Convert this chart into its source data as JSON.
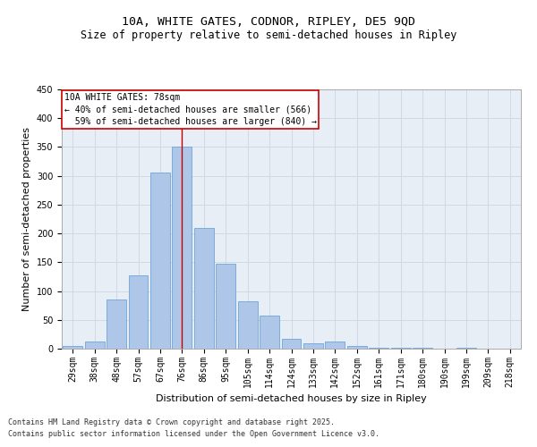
{
  "title_line1": "10A, WHITE GATES, CODNOR, RIPLEY, DE5 9QD",
  "title_line2": "Size of property relative to semi-detached houses in Ripley",
  "xlabel": "Distribution of semi-detached houses by size in Ripley",
  "ylabel": "Number of semi-detached properties",
  "categories": [
    "29sqm",
    "38sqm",
    "48sqm",
    "57sqm",
    "67sqm",
    "76sqm",
    "86sqm",
    "95sqm",
    "105sqm",
    "114sqm",
    "124sqm",
    "133sqm",
    "142sqm",
    "152sqm",
    "161sqm",
    "171sqm",
    "180sqm",
    "190sqm",
    "199sqm",
    "209sqm",
    "218sqm"
  ],
  "bar_values": [
    5,
    12,
    85,
    128,
    305,
    350,
    210,
    147,
    83,
    57,
    17,
    10,
    13,
    5,
    1,
    1,
    2,
    0,
    1,
    0,
    0
  ],
  "bar_color": "#aec6e8",
  "bar_edge_color": "#5b9bd5",
  "grid_color": "#d0d8e4",
  "background_color": "#e8eef5",
  "vline_x": 5,
  "vline_color": "#cc0000",
  "annotation_text": "10A WHITE GATES: 78sqm\n← 40% of semi-detached houses are smaller (566)\n  59% of semi-detached houses are larger (840) →",
  "annotation_box_color": "#cc0000",
  "ylim": [
    0,
    450
  ],
  "yticks": [
    0,
    50,
    100,
    150,
    200,
    250,
    300,
    350,
    400,
    450
  ],
  "footer_line1": "Contains HM Land Registry data © Crown copyright and database right 2025.",
  "footer_line2": "Contains public sector information licensed under the Open Government Licence v3.0.",
  "title_fontsize": 9.5,
  "subtitle_fontsize": 8.5,
  "axis_fontsize": 8,
  "tick_fontsize": 7,
  "annotation_fontsize": 7,
  "footer_fontsize": 6
}
